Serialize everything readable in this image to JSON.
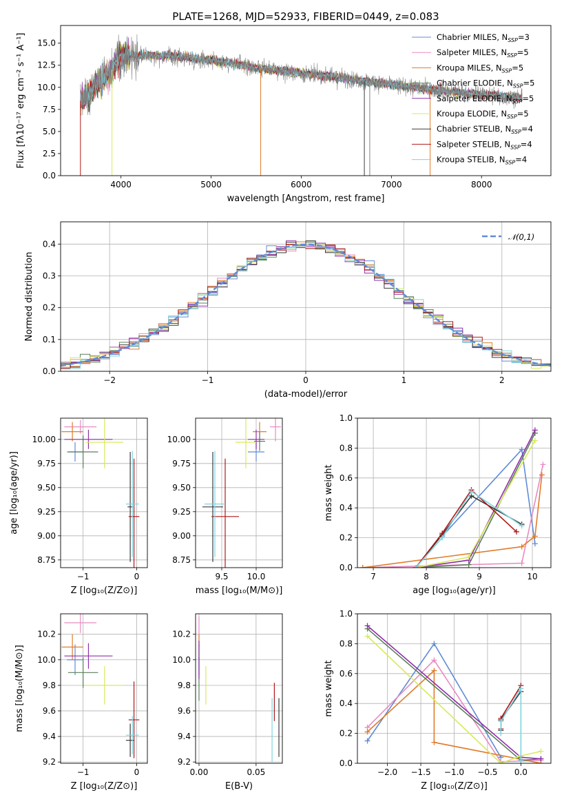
{
  "colors": {
    "Chabrier MILES": "#5f8bd6",
    "Salpeter MILES": "#e88ac0",
    "Kroupa MILES": "#e07b2a",
    "Chabrier ELODIE": "#5a7f5a",
    "Salpeter ELODIE": "#8f2ea8",
    "Kroupa ELODIE": "#d7ea5c",
    "Chabrier STELIB": "#3a3a3a",
    "Salpeter STELIB": "#b01818",
    "Kroupa STELIB": "#7fd3df",
    "normal_curve": "#5f8bd6"
  },
  "chart_data": [
    {
      "id": "spectrum",
      "type": "line",
      "title": "PLATE=1268, MJD=52933, FIBERID=0449, z=0.083",
      "xlabel": "wavelength [Angstrom, rest frame]",
      "ylabel": "Flux [fλ10⁻¹⁷ erg cm⁻² s⁻¹ A⁻¹]",
      "xlim": [
        3330,
        8770
      ],
      "ylim": [
        0,
        17
      ],
      "xticks": [
        4000,
        5000,
        6000,
        7000,
        8000
      ],
      "yticks": [
        0.0,
        2.5,
        5.0,
        7.5,
        10.0,
        12.5,
        15.0
      ],
      "grid": false,
      "legend_position": "top-right",
      "series_labels": [
        "Chabrier MILES, N_SSP=3",
        "Salpeter MILES, N_SSP=5",
        "Kroupa MILES, N_SSP=5",
        "Chabrier ELODIE, N_SSP=5",
        "Salpeter ELODIE, N_SSP=5",
        "Kroupa ELODIE, N_SSP=5",
        "Chabrier STELIB, N_SSP=4",
        "Salpeter STELIB, N_SSP=4",
        "Kroupa STELIB, N_SSP=4"
      ],
      "data_wavelength_range": [
        3550,
        8450
      ],
      "continuum_anchors": [
        [
          3550,
          8.5
        ],
        [
          3900,
          12.0
        ],
        [
          4000,
          13.6
        ],
        [
          4500,
          13.6
        ],
        [
          5000,
          13.1
        ],
        [
          5500,
          12.2
        ],
        [
          6000,
          11.6
        ],
        [
          6500,
          11.0
        ],
        [
          7000,
          10.3
        ],
        [
          7500,
          9.7
        ],
        [
          8000,
          9.2
        ],
        [
          8450,
          8.8
        ]
      ]
    },
    {
      "id": "residuals",
      "type": "histogram",
      "xlabel": "(data-model)/error",
      "ylabel": "Normed distribution",
      "xlim": [
        -2.5,
        2.5
      ],
      "ylim": [
        0,
        0.47
      ],
      "xticks": [
        -2,
        -1,
        0,
        1,
        2
      ],
      "yticks": [
        0.0,
        0.1,
        0.2,
        0.3,
        0.4
      ],
      "grid": true,
      "bin_width": 0.1,
      "curve_label": "𝒩(0,1)",
      "legend_position": "top-right"
    },
    {
      "id": "age-vs-Z",
      "type": "errorbar",
      "xlabel": "Z [log₁₀(Z/Z⊙)]",
      "ylabel": "age  [log₁₀(age/yr)]",
      "xlim": [
        -1.42,
        0.2
      ],
      "ylim": [
        8.67,
        10.22
      ],
      "xticks": [
        -1,
        0
      ],
      "yticks": [
        8.75,
        9.0,
        9.25,
        9.5,
        9.75,
        10.0
      ],
      "grid": true,
      "points": [
        {
          "model": "Chabrier MILES",
          "x": -1.15,
          "xerr": 0.15,
          "y": 9.87,
          "yerr": 0.1
        },
        {
          "model": "Salpeter MILES",
          "x": -1.05,
          "xerr": 0.3,
          "y": 10.13,
          "yerr": 0.07
        },
        {
          "model": "Kroupa MILES",
          "x": -1.2,
          "xerr": 0.2,
          "y": 10.08,
          "yerr": 0.1
        },
        {
          "model": "Chabrier ELODIE",
          "x": -1.0,
          "xerr": 0.28,
          "y": 9.87,
          "yerr": 0.17
        },
        {
          "model": "Salpeter ELODIE",
          "x": -0.9,
          "xerr": 0.45,
          "y": 10.0,
          "yerr": 0.1
        },
        {
          "model": "Kroupa ELODIE",
          "x": -0.6,
          "xerr": 0.35,
          "y": 9.97,
          "yerr": 0.27
        },
        {
          "model": "Chabrier STELIB",
          "x": -0.12,
          "xerr": 0.05,
          "y": 9.3,
          "yerr": 0.57
        },
        {
          "model": "Salpeter STELIB",
          "x": -0.05,
          "xerr": 0.1,
          "y": 9.2,
          "yerr": 0.6
        },
        {
          "model": "Kroupa STELIB",
          "x": -0.08,
          "xerr": 0.12,
          "y": 9.33,
          "yerr": 0.55
        }
      ]
    },
    {
      "id": "age-vs-mass",
      "type": "errorbar",
      "xlabel": "mass [log₁₀(M/M⊙)]",
      "ylabel": "",
      "xlim": [
        9.12,
        10.38
      ],
      "ylim": [
        8.67,
        10.22
      ],
      "xticks": [
        9.5,
        10.0
      ],
      "yticks": [
        8.75,
        9.0,
        9.25,
        9.5,
        9.75,
        10.0
      ],
      "grid": true,
      "points": [
        {
          "model": "Chabrier MILES",
          "x": 10.0,
          "xerr": 0.12,
          "y": 9.87,
          "yerr": 0.1
        },
        {
          "model": "Salpeter MILES",
          "x": 10.28,
          "xerr": 0.08,
          "y": 10.13,
          "yerr": 0.15
        },
        {
          "model": "Kroupa MILES",
          "x": 10.05,
          "xerr": 0.1,
          "y": 10.08,
          "yerr": 0.1
        },
        {
          "model": "Chabrier ELODIE",
          "x": 10.05,
          "xerr": 0.08,
          "y": 9.98,
          "yerr": 0.1
        },
        {
          "model": "Salpeter ELODIE",
          "x": 10.0,
          "xerr": 0.12,
          "y": 10.0,
          "yerr": 0.1
        },
        {
          "model": "Kroupa ELODIE",
          "x": 9.85,
          "xerr": 0.15,
          "y": 9.97,
          "yerr": 0.27
        },
        {
          "model": "Chabrier STELIB",
          "x": 9.37,
          "xerr": 0.15,
          "y": 9.3,
          "yerr": 0.57
        },
        {
          "model": "Salpeter STELIB",
          "x": 9.55,
          "xerr": 0.2,
          "y": 9.2,
          "yerr": 0.6
        },
        {
          "model": "Kroupa STELIB",
          "x": 9.4,
          "xerr": 0.15,
          "y": 9.33,
          "yerr": 0.55
        }
      ]
    },
    {
      "id": "massweight-vs-age",
      "type": "line",
      "xlabel": "age  [log₁₀(age/yr)]",
      "ylabel": "mass weight",
      "xlim": [
        6.7,
        10.35
      ],
      "ylim": [
        0,
        1.0
      ],
      "xticks": [
        7,
        8,
        9,
        10
      ],
      "yticks": [
        0.0,
        0.2,
        0.4,
        0.6,
        0.8,
        1.0
      ],
      "grid": true,
      "series": [
        {
          "model": "Chabrier MILES",
          "x": [
            8.3,
            9.8,
            10.05
          ],
          "y": [
            0.21,
            0.79,
            0.16
          ]
        },
        {
          "model": "Salpeter MILES",
          "x": [
            6.8,
            9.8,
            10.2
          ],
          "y": [
            0.0,
            0.03,
            0.69
          ]
        },
        {
          "model": "Kroupa MILES",
          "x": [
            6.8,
            9.8,
            10.05,
            10.18
          ],
          "y": [
            0.0,
            0.14,
            0.21,
            0.62
          ]
        },
        {
          "model": "Chabrier ELODIE",
          "x": [
            7.8,
            8.8,
            10.05
          ],
          "y": [
            0.0,
            0.02,
            0.9
          ]
        },
        {
          "model": "Salpeter ELODIE",
          "x": [
            7.8,
            8.8,
            10.05
          ],
          "y": [
            0.0,
            0.05,
            0.92
          ]
        },
        {
          "model": "Kroupa ELODIE",
          "x": [
            7.8,
            8.8,
            10.05
          ],
          "y": [
            0.0,
            0.07,
            0.85
          ]
        },
        {
          "model": "Chabrier STELIB",
          "x": [
            7.8,
            8.3,
            8.85,
            9.8
          ],
          "y": [
            0.0,
            0.22,
            0.48,
            0.29
          ]
        },
        {
          "model": "Salpeter STELIB",
          "x": [
            7.8,
            8.3,
            8.85,
            9.7
          ],
          "y": [
            0.0,
            0.23,
            0.52,
            0.24
          ]
        },
        {
          "model": "Kroupa STELIB",
          "x": [
            7.8,
            8.3,
            8.85,
            9.8
          ],
          "y": [
            0.0,
            0.2,
            0.51,
            0.28
          ]
        }
      ]
    },
    {
      "id": "mass-vs-Z",
      "type": "errorbar",
      "xlabel": "Z [log₁₀(Z/Z⊙)]",
      "ylabel": "mass [log₁₀(M/M⊙)]",
      "xlim": [
        -1.42,
        0.2
      ],
      "ylim": [
        9.19,
        10.36
      ],
      "xticks": [
        -1,
        0
      ],
      "yticks": [
        9.2,
        9.4,
        9.6,
        9.8,
        10.0,
        10.2
      ],
      "grid": true,
      "points": [
        {
          "model": "Chabrier MILES",
          "x": -1.15,
          "xerr": 0.15,
          "y": 10.0,
          "yerr": 0.12
        },
        {
          "model": "Salpeter MILES",
          "x": -1.05,
          "xerr": 0.3,
          "y": 10.29,
          "yerr": 0.08
        },
        {
          "model": "Kroupa MILES",
          "x": -1.2,
          "xerr": 0.2,
          "y": 10.1,
          "yerr": 0.1
        },
        {
          "model": "Chabrier ELODIE",
          "x": -1.0,
          "xerr": 0.28,
          "y": 9.9,
          "yerr": 0.12
        },
        {
          "model": "Salpeter ELODIE",
          "x": -0.9,
          "xerr": 0.45,
          "y": 10.03,
          "yerr": 0.1
        },
        {
          "model": "Kroupa ELODIE",
          "x": -0.6,
          "xerr": 0.35,
          "y": 9.8,
          "yerr": 0.15
        },
        {
          "model": "Chabrier STELIB",
          "x": -0.12,
          "xerr": 0.08,
          "y": 9.37,
          "yerr": 0.13
        },
        {
          "model": "Salpeter STELIB",
          "x": -0.05,
          "xerr": 0.1,
          "y": 9.53,
          "yerr": 0.3
        },
        {
          "model": "Kroupa STELIB",
          "x": -0.08,
          "xerr": 0.12,
          "y": 9.41,
          "yerr": 0.15
        }
      ]
    },
    {
      "id": "mass-vs-EBV",
      "type": "errorbar",
      "xlabel": "E(B-V)",
      "ylabel": "",
      "xlim": [
        -0.003,
        0.073
      ],
      "ylim": [
        9.19,
        10.36
      ],
      "xticks": [
        0.0,
        0.05
      ],
      "yticks": [
        9.2,
        9.4,
        9.6,
        9.8,
        10.0,
        10.2
      ],
      "grid": true,
      "points": [
        {
          "model": "Chabrier MILES",
          "x": 0.0,
          "xerr": 0,
          "y": 10.0,
          "yerr": 0.12
        },
        {
          "model": "Salpeter MILES",
          "x": 0.0,
          "xerr": 0,
          "y": 10.22,
          "yerr": 0.12
        },
        {
          "model": "Kroupa MILES",
          "x": 0.0,
          "xerr": 0,
          "y": 10.1,
          "yerr": 0.1
        },
        {
          "model": "Chabrier ELODIE",
          "x": 0.0,
          "xerr": 0,
          "y": 9.85,
          "yerr": 0.17
        },
        {
          "model": "Salpeter ELODIE",
          "x": 0.0,
          "xerr": 0,
          "y": 10.0,
          "yerr": 0.15
        },
        {
          "model": "Kroupa ELODIE",
          "x": 0.006,
          "xerr": 0,
          "y": 9.8,
          "yerr": 0.15
        },
        {
          "model": "Chabrier STELIB",
          "x": 0.07,
          "xerr": 0,
          "y": 9.47,
          "yerr": 0.23
        },
        {
          "model": "Salpeter STELIB",
          "x": 0.066,
          "xerr": 0,
          "y": 9.67,
          "yerr": 0.15
        },
        {
          "model": "Kroupa STELIB",
          "x": 0.064,
          "xerr": 0,
          "y": 9.45,
          "yerr": 0.25
        }
      ]
    },
    {
      "id": "massweight-vs-Z",
      "type": "line",
      "xlabel": "Z [log₁₀(Z/Z⊙)]",
      "ylabel": "mass weight",
      "xlim": [
        -2.45,
        0.45
      ],
      "ylim": [
        0,
        1.0
      ],
      "xticks": [
        -2.0,
        -1.5,
        -1.0,
        -0.5,
        0.0
      ],
      "yticks": [
        0.0,
        0.2,
        0.4,
        0.6,
        0.8,
        1.0
      ],
      "grid": true,
      "series": [
        {
          "model": "Chabrier MILES",
          "x": [
            -2.3,
            -1.3,
            -0.3
          ],
          "y": [
            0.15,
            0.8,
            0.04
          ]
        },
        {
          "model": "Salpeter MILES",
          "x": [
            -2.3,
            -1.3,
            -0.3,
            0.3
          ],
          "y": [
            0.24,
            0.69,
            0.01,
            0.02
          ]
        },
        {
          "model": "Kroupa MILES",
          "x": [
            -2.3,
            -1.3,
            -1.3,
            0.3
          ],
          "y": [
            0.21,
            0.62,
            0.14,
            0.0
          ]
        },
        {
          "model": "Chabrier ELODIE",
          "x": [
            -2.3,
            0.0,
            0.3
          ],
          "y": [
            0.9,
            0.02,
            0.03
          ]
        },
        {
          "model": "Salpeter ELODIE",
          "x": [
            -2.3,
            0.0,
            0.3
          ],
          "y": [
            0.92,
            0.04,
            0.03
          ]
        },
        {
          "model": "Kroupa ELODIE",
          "x": [
            -2.3,
            -0.3,
            0.0,
            0.3
          ],
          "y": [
            0.85,
            0.0,
            0.05,
            0.08
          ]
        },
        {
          "model": "Chabrier STELIB",
          "x": [
            -0.3,
            -0.3,
            0.0
          ],
          "y": [
            0.22,
            0.29,
            0.48
          ]
        },
        {
          "model": "Salpeter STELIB",
          "x": [
            -0.3,
            -0.3,
            0.0
          ],
          "y": [
            0.23,
            0.3,
            0.52
          ]
        },
        {
          "model": "Kroupa STELIB",
          "x": [
            -0.3,
            -0.3,
            0.0,
            0.0
          ],
          "y": [
            0.2,
            0.28,
            0.5,
            0.02
          ]
        }
      ]
    }
  ]
}
